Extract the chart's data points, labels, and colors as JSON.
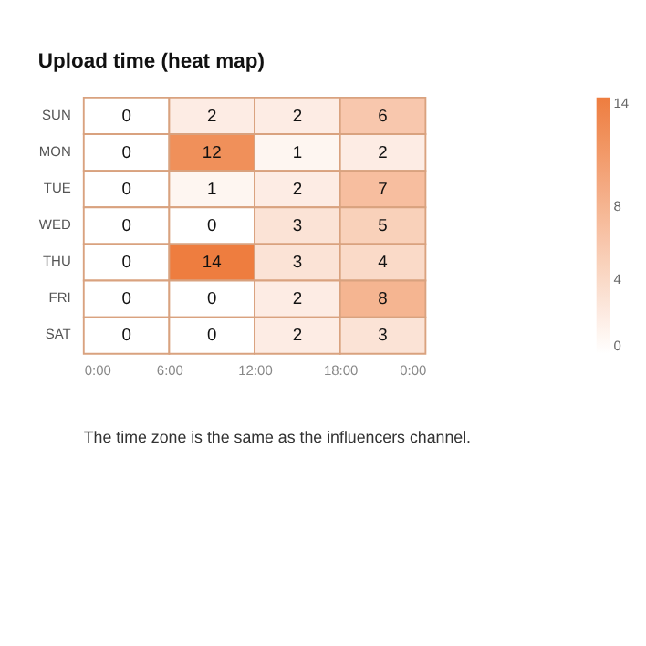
{
  "chart_data": {
    "type": "heatmap",
    "title": "Upload time (heat map)",
    "x": [
      3,
      9,
      15,
      21
    ],
    "y_categories": [
      "SUN",
      "MON",
      "TUE",
      "WED",
      "THU",
      "FRI",
      "SAT"
    ],
    "cells": [
      [
        0,
        2,
        2,
        6
      ],
      [
        0,
        12,
        1,
        2
      ],
      [
        0,
        1,
        2,
        7
      ],
      [
        0,
        0,
        3,
        5
      ],
      [
        0,
        14,
        3,
        4
      ],
      [
        0,
        0,
        2,
        8
      ],
      [
        0,
        0,
        2,
        3
      ]
    ],
    "xlim": [
      0,
      24
    ],
    "xticks": [
      {
        "value": 0,
        "label": "0:00"
      },
      {
        "value": 6,
        "label": "6:00"
      },
      {
        "value": 12,
        "label": "12:00"
      },
      {
        "value": 18,
        "label": "18:00"
      },
      {
        "value": 24,
        "label": "0:00"
      }
    ],
    "clim": [
      0,
      14
    ],
    "cticks": [
      0,
      4,
      8,
      14
    ],
    "colors": [
      "#ffffff",
      "#ee7d3f"
    ],
    "data_labels": true,
    "annotations": [
      "The time zone is the same as the influencers channel."
    ]
  }
}
